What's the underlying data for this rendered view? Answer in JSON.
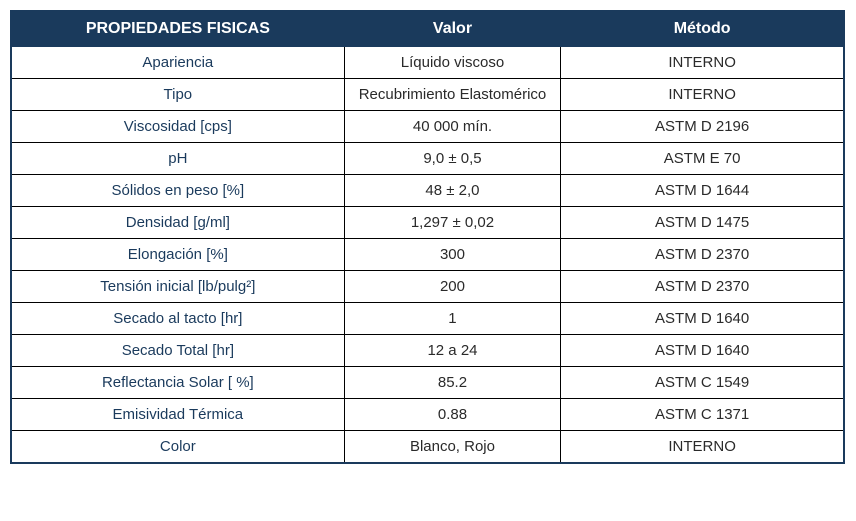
{
  "table": {
    "header_bg": "#1a3a5c",
    "header_text_color": "#ffffff",
    "cell_text_color": "#2a2a2a",
    "prop_text_color": "#1a3a5c",
    "border_color": "#000000",
    "columns": [
      {
        "label": "PROPIEDADES FISICAS",
        "width": "40%"
      },
      {
        "label": "Valor",
        "width": "26%"
      },
      {
        "label": "Método",
        "width": "34%"
      }
    ],
    "rows": [
      {
        "prop": "Apariencia",
        "valor": "Líquido viscoso",
        "metodo": "INTERNO"
      },
      {
        "prop": "Tipo",
        "valor": "Recubrimiento Elastomérico",
        "metodo": "INTERNO"
      },
      {
        "prop": "Viscosidad [cps]",
        "valor": "40 000 mín.",
        "metodo": "ASTM D 2196"
      },
      {
        "prop": "pH",
        "valor": "9,0 ± 0,5",
        "metodo": "ASTM E 70"
      },
      {
        "prop": "Sólidos en peso [%]",
        "valor": "48 ± 2,0",
        "metodo": "ASTM D 1644"
      },
      {
        "prop": "Densidad [g/ml]",
        "valor": "1,297 ± 0,02",
        "metodo": "ASTM D 1475"
      },
      {
        "prop": "Elongación [%]",
        "valor": "300",
        "metodo": "ASTM D 2370"
      },
      {
        "prop": "Tensión inicial [lb/pulg²]",
        "valor": "200",
        "metodo": "ASTM D 2370"
      },
      {
        "prop": "Secado al tacto [hr]",
        "valor": "1",
        "metodo": "ASTM D 1640"
      },
      {
        "prop": "Secado Total [hr]",
        "valor": "12 a 24",
        "metodo": "ASTM D 1640"
      },
      {
        "prop": "Reflectancia Solar [ %]",
        "valor": "85.2",
        "metodo": "ASTM C 1549"
      },
      {
        "prop": "Emisividad Térmica",
        "valor": "0.88",
        "metodo": "ASTM C 1371"
      },
      {
        "prop": "Color",
        "valor": "Blanco, Rojo",
        "metodo": "INTERNO"
      }
    ]
  }
}
